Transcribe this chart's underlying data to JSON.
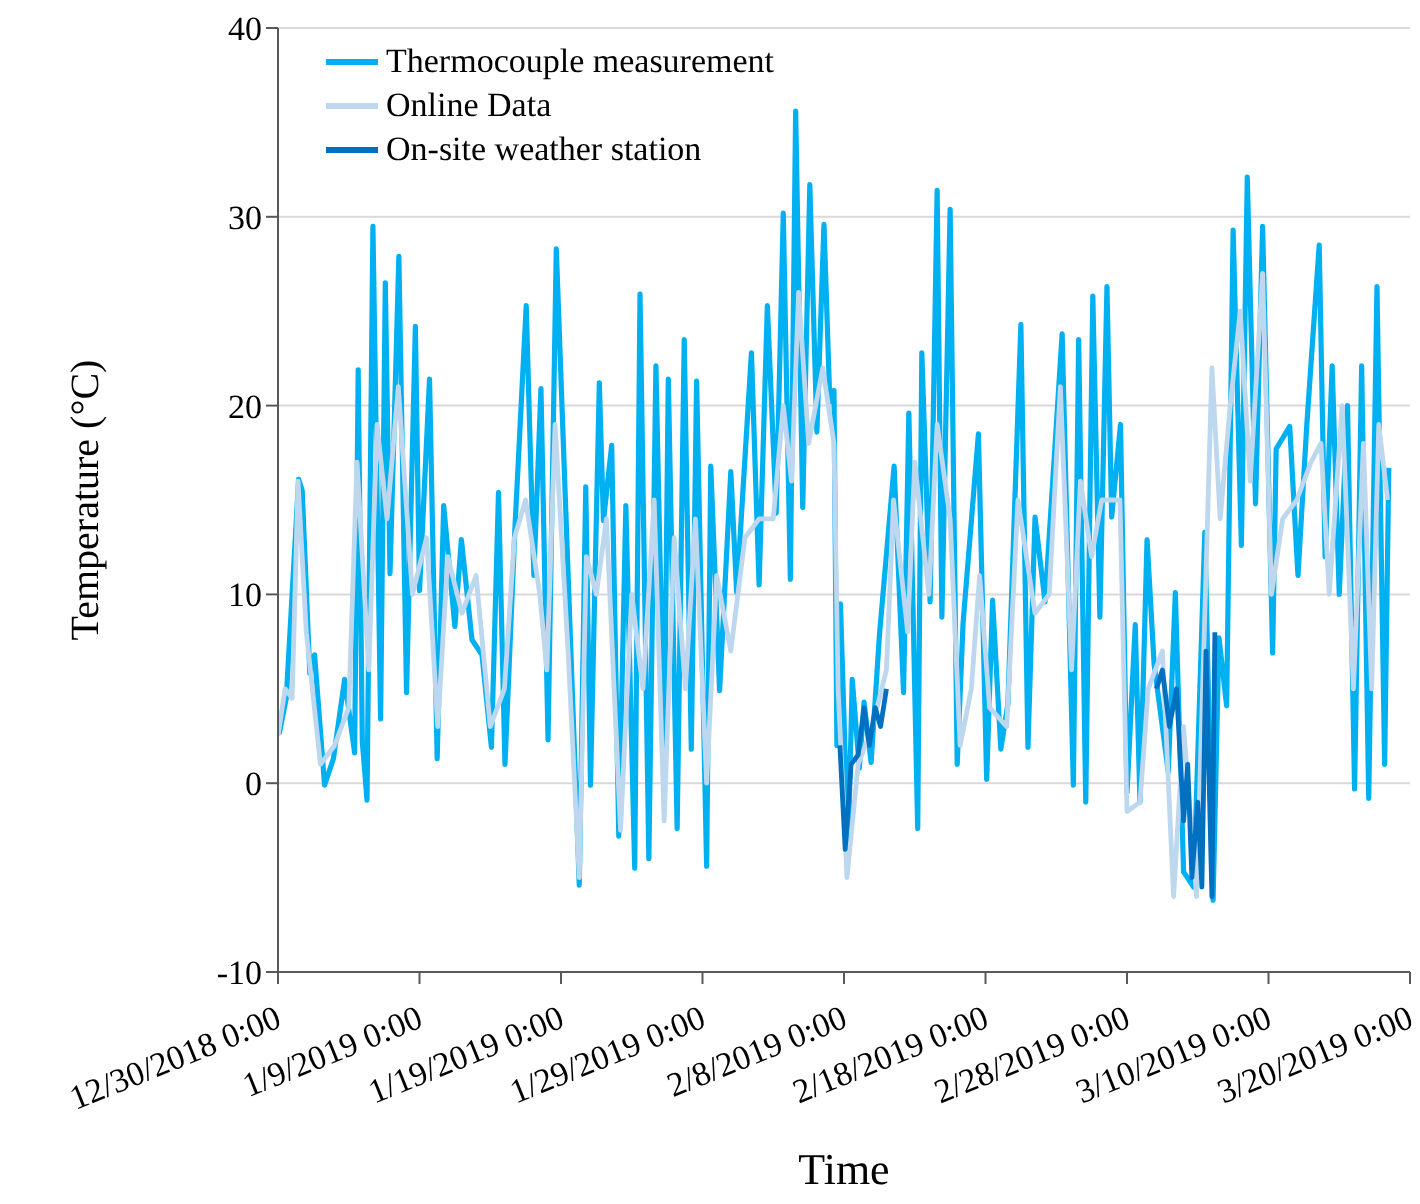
{
  "chart_data": {
    "type": "line",
    "xlabel": "Time",
    "ylabel": "Temperature (°C)",
    "xlim": [
      "2018-12-30",
      "2019-03-20"
    ],
    "xticks": [
      {
        "value": "2018-12-30",
        "label": "12/30/2018 0:00"
      },
      {
        "value": "2019-01-09",
        "label": "1/9/2019 0:00"
      },
      {
        "value": "2019-01-19",
        "label": "1/19/2019 0:00"
      },
      {
        "value": "2019-01-29",
        "label": "1/29/2019 0:00"
      },
      {
        "value": "2019-02-08",
        "label": "2/8/2019 0:00"
      },
      {
        "value": "2019-02-18",
        "label": "2/18/2019 0:00"
      },
      {
        "value": "2019-02-28",
        "label": "2/28/2019 0:00"
      },
      {
        "value": "2019-03-10",
        "label": "3/10/2019 0:00"
      },
      {
        "value": "2019-03-20",
        "label": "3/20/2019 0:00"
      }
    ],
    "ylim": [
      -10,
      40
    ],
    "yticks": [
      -10,
      0,
      10,
      20,
      30,
      40
    ],
    "grid": "y",
    "legend": "top left",
    "marker": "none",
    "line_style": "solid",
    "series": [
      {
        "name": "Thermocouple measurement",
        "color": "#00b0f0",
        "x": [
          "2018-12-30T02:00",
          "2018-12-30T14:00",
          "2018-12-31T11:00",
          "2018-12-31T17:00",
          "2019-01-01T06:00",
          "2019-01-01T14:00",
          "2019-01-02T07:00",
          "2019-01-02T22:00",
          "2019-01-03T17:00",
          "2019-01-04T10:00",
          "2019-01-04T16:00",
          "2019-01-04T23:00",
          "2019-01-05T07:00",
          "2019-01-05T17:00",
          "2019-01-06T06:00",
          "2019-01-06T14:00",
          "2019-01-06T22:00",
          "2019-01-07T13:00",
          "2019-01-08T02:00",
          "2019-01-08T17:00",
          "2019-01-09T00:00",
          "2019-01-09T17:00",
          "2019-01-10T06:00",
          "2019-01-10T17:00",
          "2019-01-11T12:00",
          "2019-01-11T23:00",
          "2019-01-12T17:00",
          "2019-01-13T10:00",
          "2019-01-14T02:00",
          "2019-01-14T14:00",
          "2019-01-15T01:00",
          "2019-01-15T18:00",
          "2019-01-16T13:00",
          "2019-01-17T02:00",
          "2019-01-17T14:00",
          "2019-01-18T02:00",
          "2019-01-18T16:00",
          "2019-01-19T12:00",
          "2019-01-20T07:00",
          "2019-01-20T18:00",
          "2019-01-21T02:00",
          "2019-01-21T17:00",
          "2019-01-22T00:00",
          "2019-01-22T14:00",
          "2019-01-23T02:00",
          "2019-01-23T14:00",
          "2019-01-24T05:00",
          "2019-01-24T14:00",
          "2019-01-25T05:00",
          "2019-01-25T17:00",
          "2019-01-26T07:00",
          "2019-01-26T14:00",
          "2019-01-27T05:00",
          "2019-01-27T17:00",
          "2019-01-28T05:00",
          "2019-01-28T14:00",
          "2019-01-29T07:00",
          "2019-01-29T14:00",
          "2019-01-30T05:00",
          "2019-01-31T00:00",
          "2019-01-31T10:00",
          "2019-02-01T11:00",
          "2019-02-02T00:00",
          "2019-02-02T14:00",
          "2019-02-03T05:00",
          "2019-02-03T17:00",
          "2019-02-04T05:00",
          "2019-02-04T14:00",
          "2019-02-05T02:00",
          "2019-02-05T14:00",
          "2019-02-06T02:00",
          "2019-02-06T14:00",
          "2019-02-07T00:00",
          "2019-02-07T07:00",
          "2019-02-07T12:00",
          "2019-02-07T18:00",
          "2019-02-08T07:00",
          "2019-02-08T14:00",
          "2019-02-09T02:00",
          "2019-02-09T10:00",
          "2019-02-09T22:00",
          "2019-02-10T12:00",
          "2019-02-11T13:00",
          "2019-02-12T05:00",
          "2019-02-12T14:00",
          "2019-02-13T05:00",
          "2019-02-13T12:00",
          "2019-02-14T02:00",
          "2019-02-14T14:00",
          "2019-02-14T22:00",
          "2019-02-15T12:00",
          "2019-02-16T00:00",
          "2019-02-16T10:00",
          "2019-02-17T12:00",
          "2019-02-18T02:00",
          "2019-02-18T12:00",
          "2019-02-19T02:00",
          "2019-02-19T14:00",
          "2019-02-20T12:00",
          "2019-02-21T00:00",
          "2019-02-21T12:00",
          "2019-02-22T05:00",
          "2019-02-23T10:00",
          "2019-02-24T05:00",
          "2019-02-24T14:00",
          "2019-02-25T02:00",
          "2019-02-25T14:00",
          "2019-02-26T02:00",
          "2019-02-26T14:00",
          "2019-02-26T22:00",
          "2019-02-27T13:00",
          "2019-02-28T00:00",
          "2019-02-28T14:00",
          "2019-02-28T22:00",
          "2019-03-01T10:00",
          "2019-03-01T22:00",
          "2019-03-02T22:00",
          "2019-03-03T10:00",
          "2019-03-04T00:00",
          "2019-03-04T17:00",
          "2019-03-05T12:00",
          "2019-03-06T02:00",
          "2019-03-06T12:00",
          "2019-03-07T01:00",
          "2019-03-07T12:00",
          "2019-03-08T02:00",
          "2019-03-08T12:00",
          "2019-03-09T02:00",
          "2019-03-09T14:00",
          "2019-03-10T07:00",
          "2019-03-10T13:00",
          "2019-03-11T12:00",
          "2019-03-12T02:00",
          "2019-03-12T17:00",
          "2019-03-13T14:00",
          "2019-03-14T00:00",
          "2019-03-14T12:00",
          "2019-03-15T00:00",
          "2019-03-15T14:00",
          "2019-03-16T02:00",
          "2019-03-16T14:00",
          "2019-03-17T02:00",
          "2019-03-17T16:00",
          "2019-03-18T05:00",
          "2019-03-18T12:00"
        ],
        "values": [
          2.6,
          4.5,
          16.1,
          15.5,
          5.8,
          6.8,
          -0.1,
          1.3,
          5.5,
          1.6,
          21.9,
          2.2,
          -0.9,
          29.5,
          3.4,
          26.5,
          11.1,
          27.9,
          4.8,
          24.2,
          10.2,
          21.4,
          1.3,
          14.7,
          8.3,
          12.9,
          7.6,
          6.8,
          1.9,
          15.4,
          1.0,
          13.6,
          25.3,
          11,
          20.9,
          2.3,
          28.3,
          11.1,
          -5.4,
          15.7,
          -0.1,
          21.2,
          13.9,
          17.9,
          -2.8,
          14.7,
          -4.5,
          25.9,
          -4.0,
          22.1,
          1.6,
          21.4,
          -2.4,
          23.5,
          1.8,
          21.3,
          -4.4,
          16.8,
          4.9,
          16.5,
          10.1,
          22.8,
          10.5,
          25.3,
          14.3,
          30.2,
          10.8,
          35.6,
          14.6,
          31.7,
          18.6,
          29.6,
          20.2,
          20.8,
          2.0,
          9.5,
          -3.7,
          5.5,
          0.8,
          4.3,
          1.1,
          7.8,
          16.8,
          4.8,
          19.6,
          -2.4,
          22.8,
          9.6,
          31.4,
          8.8,
          30.4,
          1.0,
          8.5,
          18.5,
          0.2,
          9.7,
          1.8,
          4.2,
          24.3,
          1.9,
          14.1,
          9.6,
          23.8,
          -0.1,
          23.5,
          -1.0,
          25.8,
          8.8,
          26.3,
          14.1,
          19.0,
          -0.5,
          8.4,
          -1.0,
          12.9,
          6.3,
          0.6,
          10.1,
          -4.7,
          -5.5,
          13.3,
          -6.2,
          7.7,
          4.1,
          29.3,
          12.6,
          32.1,
          14.8,
          29.5,
          6.9,
          17.7,
          18.9,
          11,
          19.0,
          28.5,
          12,
          22.1,
          10,
          20.0,
          -0.3,
          22.1,
          -0.8,
          26.3,
          1.0,
          16.7
        ]
      },
      {
        "name": "Online Data",
        "color": "#bdd7ee",
        "x": [
          "2018-12-30T00:00",
          "2018-12-30T12:00",
          "2018-12-31T00:00",
          "2018-12-31T10:00",
          "2019-01-01T00:00",
          "2019-01-02T00:00",
          "2019-01-03T00:00",
          "2019-01-04T00:00",
          "2019-01-04T14:00",
          "2019-01-05T10:00",
          "2019-01-06T00:00",
          "2019-01-06T17:00",
          "2019-01-07T12:00",
          "2019-01-08T12:00",
          "2019-01-09T12:00",
          "2019-01-10T07:00",
          "2019-01-11T00:00",
          "2019-01-12T00:00",
          "2019-01-13T00:00",
          "2019-01-14T00:00",
          "2019-01-15T00:00",
          "2019-01-15T17:00",
          "2019-01-16T12:00",
          "2019-01-17T12:00",
          "2019-01-18T00:00",
          "2019-01-18T14:00",
          "2019-01-19T12:00",
          "2019-01-20T07:00",
          "2019-01-20T19:00",
          "2019-01-21T12:00",
          "2019-01-22T05:00",
          "2019-01-23T05:00",
          "2019-01-24T00:00",
          "2019-01-24T19:00",
          "2019-01-25T14:00",
          "2019-01-26T07:00",
          "2019-01-27T00:00",
          "2019-01-27T19:00",
          "2019-01-28T12:00",
          "2019-01-29T07:00",
          "2019-01-30T00:00",
          "2019-01-31T00:00",
          "2019-02-01T00:00",
          "2019-02-02T00:00",
          "2019-02-03T00:00",
          "2019-02-03T17:00",
          "2019-02-04T07:00",
          "2019-02-04T19:00",
          "2019-02-05T12:00",
          "2019-02-06T12:00",
          "2019-02-07T07:00",
          "2019-02-07T14:00",
          "2019-02-08T05:00",
          "2019-02-09T00:00",
          "2019-02-10T00:00",
          "2019-02-11T00:00",
          "2019-02-11T12:00",
          "2019-02-12T12:00",
          "2019-02-13T00:00",
          "2019-02-14T00:00",
          "2019-02-14T14:00",
          "2019-02-15T12:00",
          "2019-02-16T05:00",
          "2019-02-17T00:00",
          "2019-02-17T14:00",
          "2019-02-18T07:00",
          "2019-02-19T12:00",
          "2019-02-20T07:00",
          "2019-02-21T12:00",
          "2019-02-22T12:00",
          "2019-02-23T07:00",
          "2019-02-24T02:00",
          "2019-02-24T17:00",
          "2019-02-25T12:00",
          "2019-02-26T05:00",
          "2019-02-27T12:00",
          "2019-02-28T00:00",
          "2019-02-28T22:00",
          "2019-03-01T12:00",
          "2019-03-02T12:00",
          "2019-03-03T07:00",
          "2019-03-04T00:00",
          "2019-03-04T22:00",
          "2019-03-05T12:00",
          "2019-03-06T00:00",
          "2019-03-06T14:00",
          "2019-03-07T07:00",
          "2019-03-08T00:00",
          "2019-03-08T17:00",
          "2019-03-09T14:00",
          "2019-03-10T05:00",
          "2019-03-11T00:00",
          "2019-03-12T00:00",
          "2019-03-13T00:00",
          "2019-03-13T17:00",
          "2019-03-14T07:00",
          "2019-03-15T05:00",
          "2019-03-16T00:00",
          "2019-03-16T17:00",
          "2019-03-17T07:00",
          "2019-03-17T19:00",
          "2019-03-18T10:00"
        ],
        "values": [
          2.5,
          5,
          4.5,
          16,
          8,
          1,
          2,
          4,
          17,
          6,
          19,
          14,
          21,
          10,
          13,
          3,
          12,
          9,
          11,
          3,
          5,
          13,
          15,
          10,
          6,
          19,
          7,
          -5,
          12,
          10,
          14,
          -2.5,
          10,
          5,
          15,
          -2,
          13,
          5,
          14,
          0,
          11,
          7,
          13,
          14,
          14,
          20,
          16,
          26,
          18,
          22,
          18,
          5,
          -5,
          1,
          3,
          6,
          15,
          8,
          17,
          10,
          19,
          14,
          2,
          5,
          11,
          4,
          3,
          15,
          9,
          10,
          21,
          6,
          16,
          12,
          15,
          15,
          -1.5,
          -1,
          5,
          7,
          -6,
          3,
          -6,
          9,
          22,
          14,
          20,
          25,
          16,
          27,
          10,
          14,
          15,
          17,
          18,
          10,
          20,
          5,
          18,
          5,
          19,
          15
        ]
      },
      {
        "name": "On-site weather station",
        "color": "#0070c0",
        "x": [
          "2019-02-07T17:00",
          "2019-02-08T02:00",
          "2019-02-08T12:00",
          "2019-02-09T00:00",
          "2019-02-09T10:00",
          "2019-02-09T19:00",
          "2019-02-10T05:00",
          "2019-02-10T14:00",
          "2019-02-11T00:00",
          "2019-02-20T00:00",
          "2019-03-02T02:00",
          "2019-03-02T12:00",
          "2019-03-03T00:00",
          "2019-03-03T12:00",
          "2019-03-04T00:00",
          "2019-03-04T07:00",
          "2019-03-04T14:00",
          "2019-03-05T00:00",
          "2019-03-05T07:00",
          "2019-03-05T14:00",
          "2019-03-06T00:00",
          "2019-03-06T05:00"
        ],
        "values": [
          2,
          -3.5,
          1,
          1.5,
          4,
          2,
          4,
          3,
          5,
          null,
          5,
          6,
          3,
          5,
          -2,
          1,
          -5,
          -1,
          -5.5,
          7,
          -6,
          8
        ]
      }
    ]
  }
}
